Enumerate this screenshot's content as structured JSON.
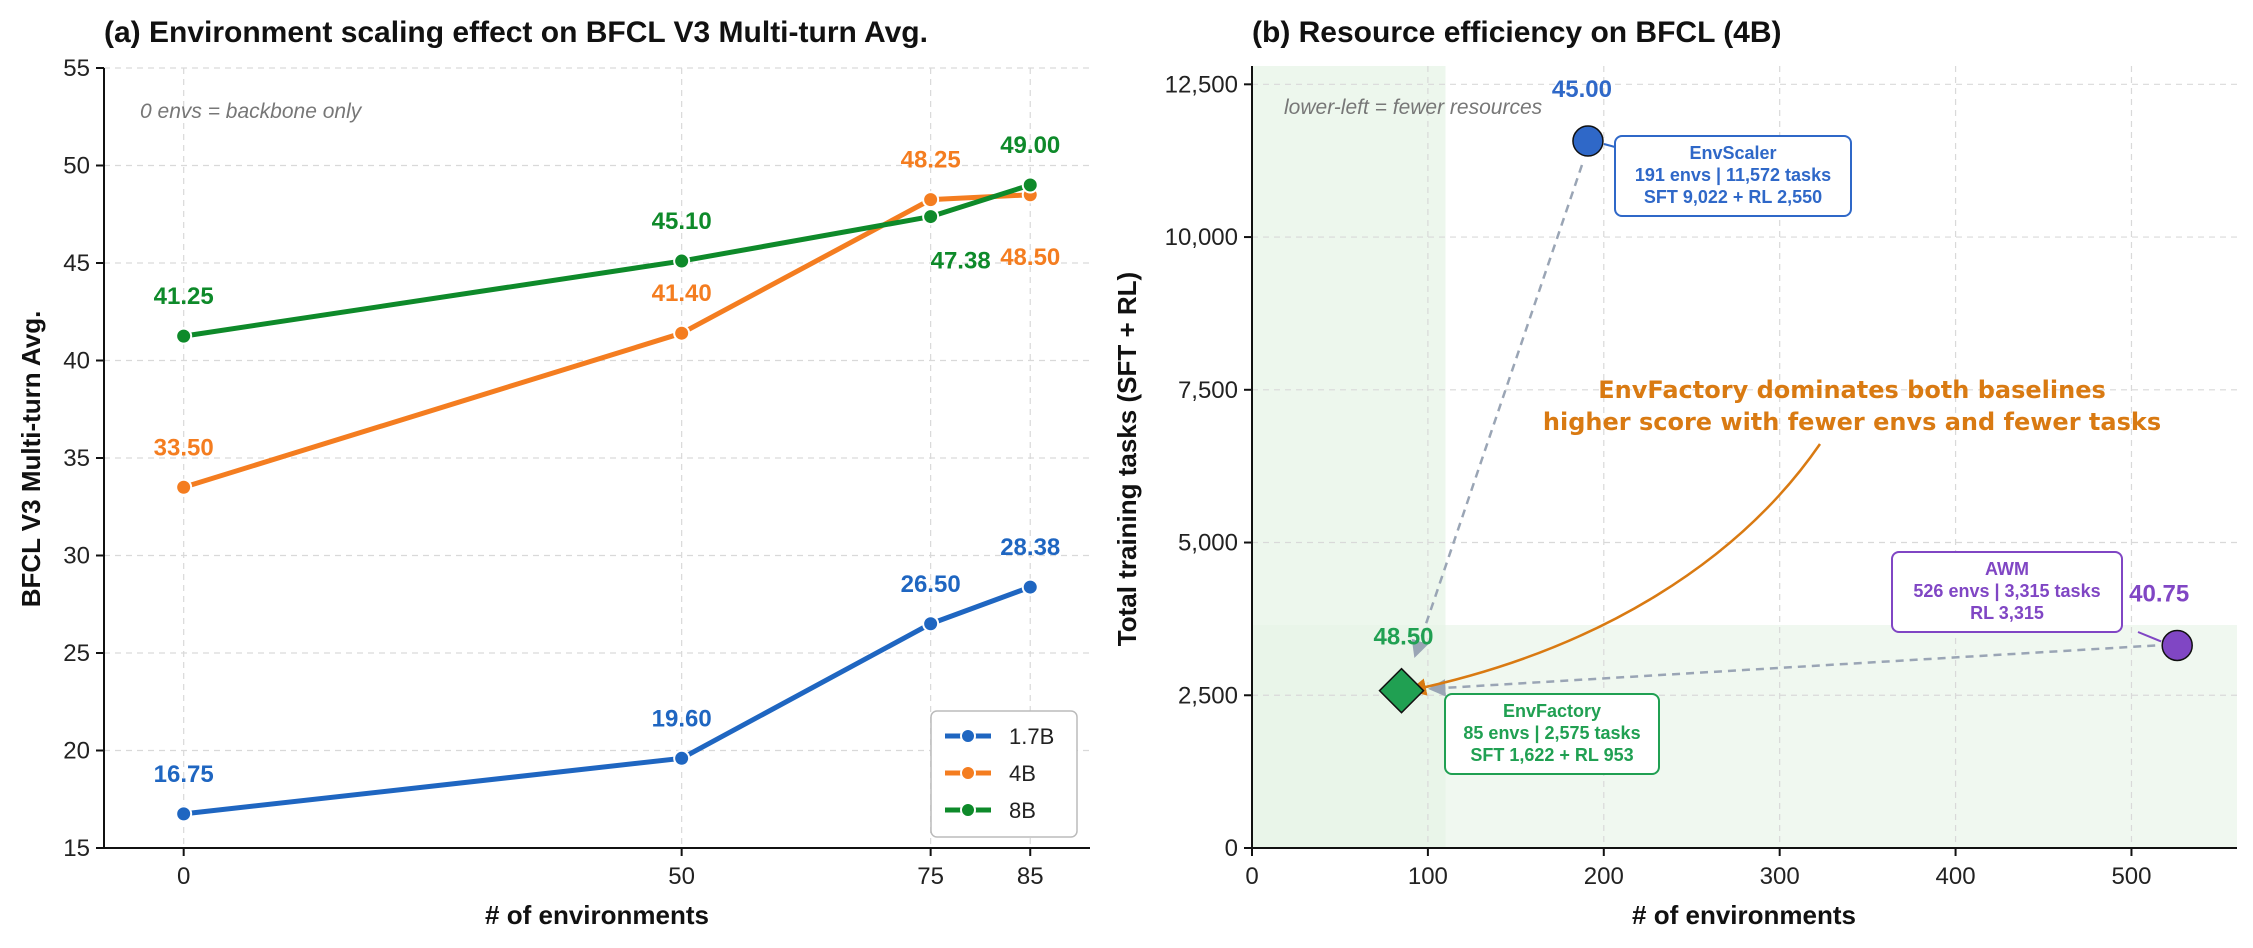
{
  "chart_data": [
    {
      "type": "line",
      "title": "(a) Environment scaling effect on BFCL V3 Multi-turn Avg.",
      "xlabel": "# of environments",
      "ylabel": "BFCL V3 Multi-turn Avg.",
      "xlim": [
        -8,
        91
      ],
      "ylim": [
        15,
        55
      ],
      "xticks": [
        0,
        50,
        75,
        85
      ],
      "yticks": [
        15,
        20,
        25,
        30,
        35,
        40,
        45,
        50,
        55
      ],
      "grid": true,
      "legend_position": "bottom-right",
      "annotation": "0 envs = backbone only",
      "x": [
        0,
        50,
        75,
        85
      ],
      "series": [
        {
          "name": "1.7B",
          "color": "#1f66c1",
          "values": [
            16.75,
            19.6,
            26.5,
            28.38
          ],
          "labels": [
            "16.75",
            "19.60",
            "26.50",
            "28.38"
          ]
        },
        {
          "name": "4B",
          "color": "#f47d20",
          "values": [
            33.5,
            41.4,
            48.25,
            48.5
          ],
          "labels": [
            "33.50",
            "41.40",
            "48.25",
            "48.50"
          ]
        },
        {
          "name": "8B",
          "color": "#0e8a2a",
          "values": [
            41.25,
            45.1,
            47.38,
            49.0
          ],
          "labels": [
            "41.25",
            "45.10",
            "47.38",
            "49.00"
          ]
        }
      ]
    },
    {
      "type": "scatter",
      "title": "(b) Resource efficiency on BFCL (4B)",
      "xlabel": "# of environments",
      "ylabel": "Total training tasks (SFT + RL)",
      "xlim": [
        0,
        560
      ],
      "ylim": [
        0,
        12800
      ],
      "xticks": [
        0,
        100,
        200,
        300,
        400,
        500
      ],
      "yticks": [
        0,
        2500,
        5000,
        7500,
        10000,
        12500
      ],
      "ytick_labels": [
        "0",
        "2,500",
        "5,000",
        "7,500",
        "10,000",
        "12,500"
      ],
      "grid": true,
      "annotation": "lower-left = fewer resources",
      "callout": [
        "EnvFactory dominates both baselines",
        "higher score with fewer envs and fewer tasks"
      ],
      "points": [
        {
          "name": "EnvScaler",
          "x": 191,
          "y": 11572,
          "score": "45.00",
          "color": "#2f68c8",
          "lines": [
            "EnvScaler",
            "191 envs | 11,572 tasks",
            "SFT 9,022 + RL 2,550"
          ]
        },
        {
          "name": "AWM",
          "x": 526,
          "y": 3315,
          "score": "40.75",
          "color": "#8046c4",
          "lines": [
            "AWM",
            "526 envs | 3,315 tasks",
            "RL 3,315"
          ]
        },
        {
          "name": "EnvFactory",
          "x": 85,
          "y": 2575,
          "score": "48.50",
          "color": "#20a052",
          "lines": [
            "EnvFactory",
            "85 envs | 2,575 tasks",
            "SFT 1,622 + RL 953"
          ]
        }
      ]
    }
  ]
}
